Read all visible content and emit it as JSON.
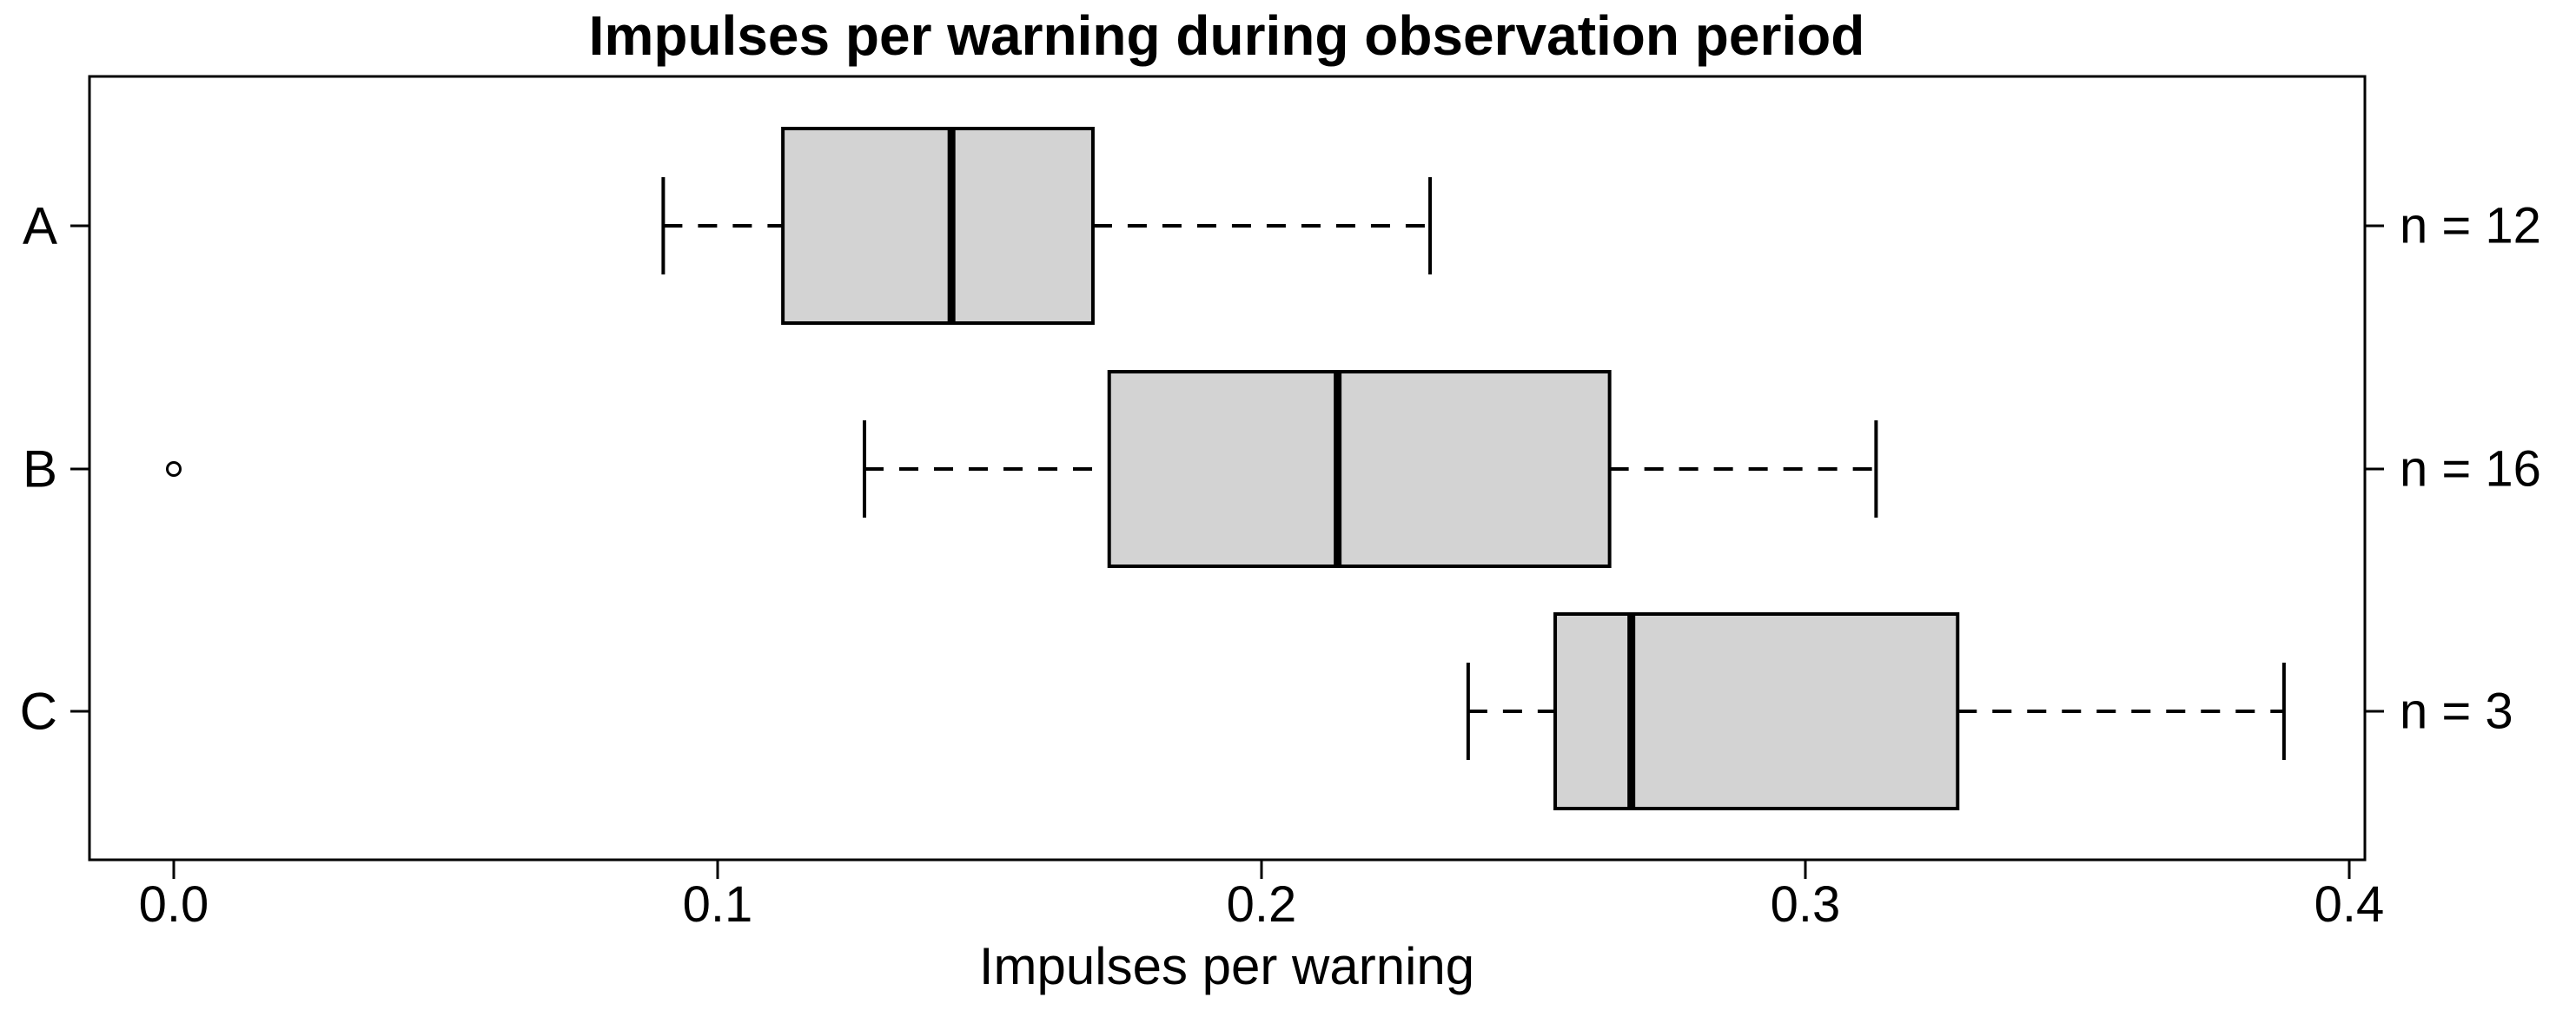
{
  "chart_data": {
    "type": "boxplot",
    "orientation": "horizontal",
    "title": "Impulses per warning during observation period",
    "xlabel": "Impulses per warning",
    "ylabel": "",
    "xlim": [
      -0.015,
      0.403
    ],
    "x_ticks": [
      0.0,
      0.1,
      0.2,
      0.3,
      0.4
    ],
    "x_tick_labels": [
      "0.0",
      "0.1",
      "0.2",
      "0.3",
      "0.4"
    ],
    "categories": [
      "A",
      "B",
      "C"
    ],
    "grid": false,
    "box_fill": "#d3d3d3",
    "line_color": "#000000",
    "background": "#ffffff",
    "whisker_style": "dashed",
    "series": [
      {
        "label": "A",
        "n": 12,
        "n_label": "n = 12",
        "whisker_low": 0.09,
        "q1": 0.112,
        "median": 0.143,
        "q3": 0.169,
        "whisker_high": 0.231,
        "outliers": []
      },
      {
        "label": "B",
        "n": 16,
        "n_label": "n = 16",
        "whisker_low": 0.127,
        "q1": 0.172,
        "median": 0.214,
        "q3": 0.264,
        "whisker_high": 0.313,
        "outliers": [
          0.0
        ]
      },
      {
        "label": "C",
        "n": 3,
        "n_label": "n = 3",
        "whisker_low": 0.238,
        "q1": 0.254,
        "median": 0.268,
        "q3": 0.328,
        "whisker_high": 0.388,
        "outliers": []
      }
    ]
  }
}
